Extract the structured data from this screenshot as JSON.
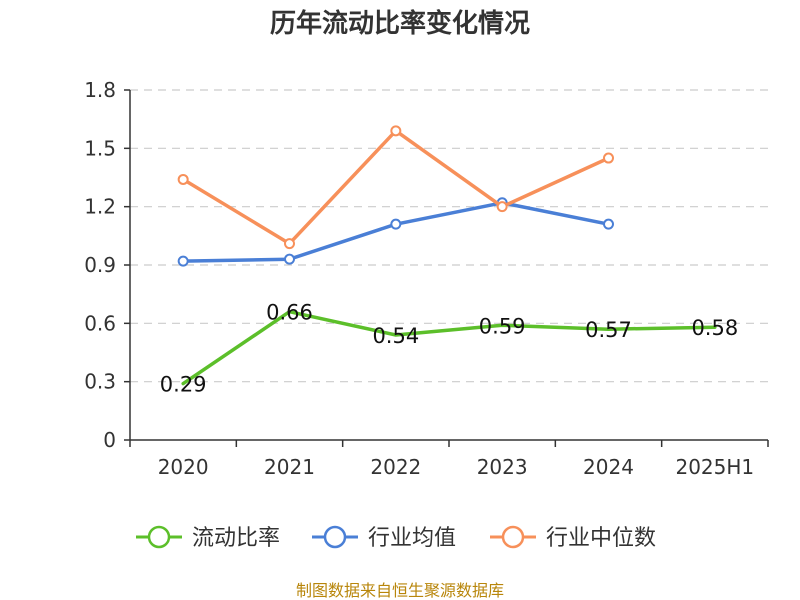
{
  "chart_data": {
    "type": "line",
    "title": "历年流动比率变化情况",
    "categories": [
      "2020",
      "2021",
      "2022",
      "2023",
      "2024",
      "2025H1"
    ],
    "yticks": [
      "0",
      "0.3",
      "0.6",
      "0.9",
      "1.2",
      "1.5",
      "1.8"
    ],
    "ylim": [
      0,
      1.8
    ],
    "grid": true,
    "legend_position": "bottom",
    "series": [
      {
        "name": "流动比率",
        "color": "#5cbf2a",
        "values": [
          0.29,
          0.66,
          0.54,
          0.59,
          0.57,
          0.58
        ],
        "labels": [
          "0.29",
          "0.66",
          "0.54",
          "0.59",
          "0.57",
          "0.58"
        ],
        "show_markers": false,
        "show_labels": true
      },
      {
        "name": "行业均值",
        "color": "#4a7fd6",
        "values": [
          0.92,
          0.93,
          1.11,
          1.22,
          1.11,
          null
        ],
        "show_markers": true,
        "show_labels": false
      },
      {
        "name": "行业中位数",
        "color": "#f7905a",
        "values": [
          1.34,
          1.01,
          1.59,
          1.2,
          1.45,
          null
        ],
        "show_markers": true,
        "show_labels": false
      }
    ],
    "source": "制图数据来自恒生聚源数据库"
  }
}
